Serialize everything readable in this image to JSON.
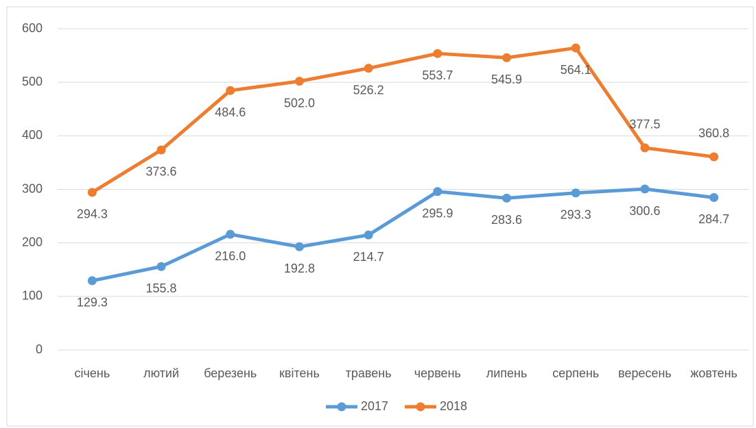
{
  "chart_data": {
    "type": "line",
    "categories": [
      "січень",
      "лютий",
      "березень",
      "квітень",
      "травень",
      "червень",
      "липень",
      "серпень",
      "вересень",
      "жовтень"
    ],
    "series": [
      {
        "name": "2017",
        "color": "#5b9bd5",
        "values": [
          129.3,
          155.8,
          216,
          192.8,
          214.7,
          295.9,
          283.6,
          293.3,
          300.6,
          284.7
        ],
        "value_labels": [
          "129.3",
          "155.8",
          "216.0",
          "192.8",
          "214.7",
          "295.9",
          "283.6",
          "293.3",
          "300.6",
          "284.7"
        ]
      },
      {
        "name": "2018",
        "color": "#ed7d31",
        "values": [
          294.3,
          373.6,
          484.6,
          502,
          526.2,
          553.7,
          545.9,
          564.1,
          377.5,
          360.8
        ],
        "value_labels": [
          "294.3",
          "373.6",
          "484.6",
          "502.0",
          "526.2",
          "553.7",
          "545.9",
          "564.1",
          "377.5",
          "360.8"
        ]
      }
    ],
    "ylim": [
      0,
      600
    ],
    "yticks": [
      0,
      100,
      200,
      300,
      400,
      500,
      600
    ],
    "grid": true,
    "legend": "bottom"
  }
}
